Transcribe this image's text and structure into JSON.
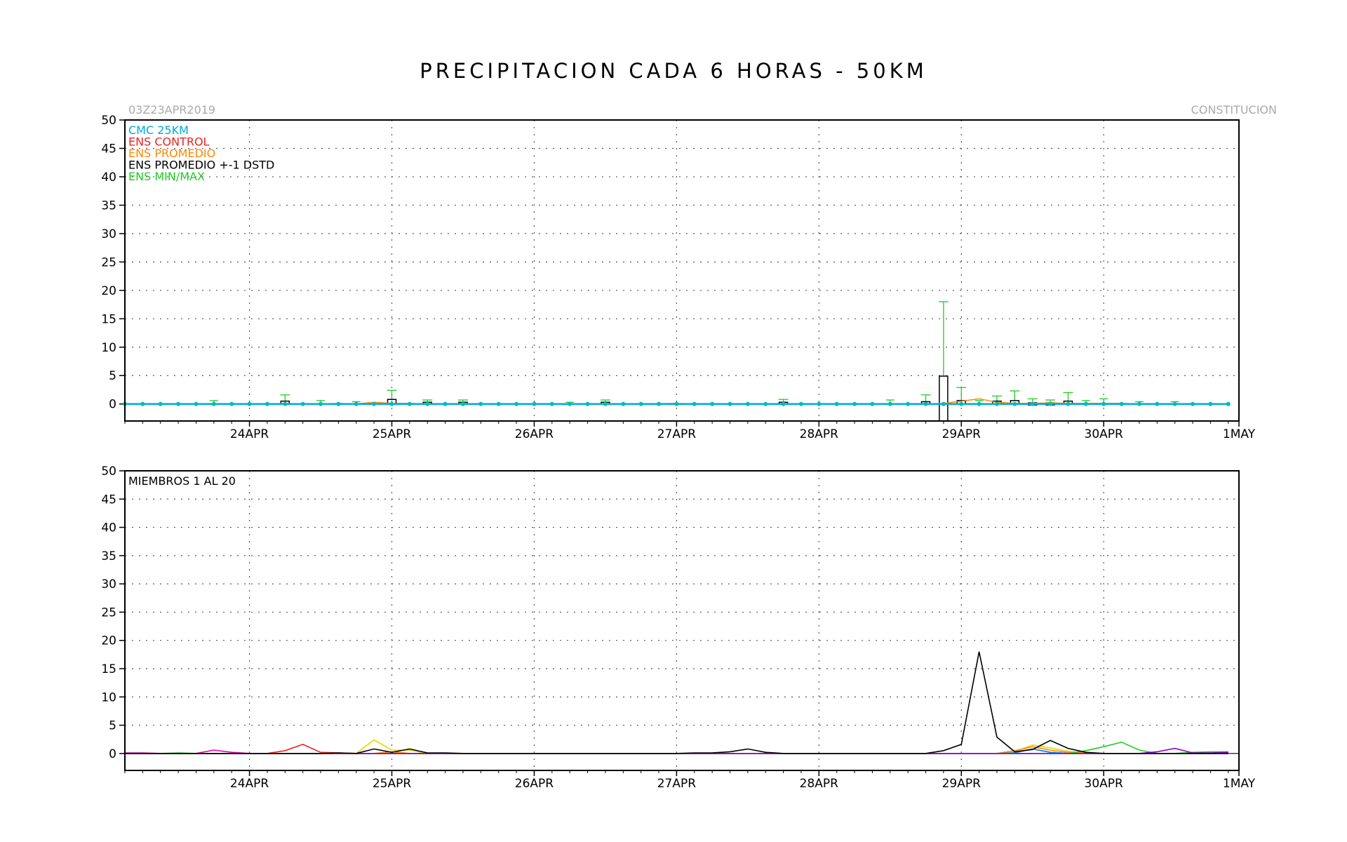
{
  "title": "PRECIPITACION CADA 6 HORAS - 50KM",
  "run_label": "03Z23APR2019",
  "location": "CONSTITUCION",
  "colors": {
    "cmc": "#00aadd",
    "control": "#ee2222",
    "promedio": "#ff8800",
    "stdbox": "#000000",
    "minmax": "#22cc22"
  },
  "chart_data": [
    {
      "type": "line",
      "name": "top-panel",
      "x_unit": "6-hour steps from 03Z23APR2019",
      "xlim": [
        0,
        31.3
      ],
      "ylim": [
        -3,
        50
      ],
      "yticks": [
        0,
        5,
        10,
        15,
        20,
        25,
        30,
        35,
        40,
        45,
        50
      ],
      "xtick_labels": [
        "24APR",
        "25APR",
        "26APR",
        "27APR",
        "28APR",
        "29APR",
        "30APR",
        "1MAY"
      ],
      "xtick_positions": [
        3.5,
        7.5,
        11.5,
        15.5,
        19.5,
        23.5,
        27.5,
        31.5
      ],
      "legend": [
        {
          "label": "CMC 25KM",
          "color": "#00aadd"
        },
        {
          "label": "ENS CONTROL",
          "color": "#ee2222"
        },
        {
          "label": "ENS PROMEDIO",
          "color": "#ff8800"
        },
        {
          "label": "ENS PROMEDIO +-1 DSTD",
          "color": "#000000"
        },
        {
          "label": "ENS MIN/MAX",
          "color": "#22cc22"
        }
      ],
      "cmc": [
        0,
        0,
        0,
        0,
        0,
        0,
        0,
        0,
        0,
        0,
        0,
        0,
        0,
        0,
        0,
        0,
        0,
        0,
        0,
        0,
        0,
        0,
        0,
        0,
        0,
        0,
        0,
        0,
        0,
        0,
        0,
        0,
        0,
        0,
        0,
        0,
        0,
        0,
        0,
        0,
        0,
        0,
        0,
        0,
        0,
        0,
        0,
        0,
        0,
        0,
        0,
        0,
        0,
        0,
        0,
        0,
        0,
        0,
        0,
        0,
        0,
        0,
        0
      ],
      "control": [
        0,
        0,
        0,
        0,
        0,
        0,
        0,
        0,
        0,
        0,
        0,
        0,
        0,
        0,
        0,
        0,
        0,
        0,
        0,
        0,
        0,
        0,
        0,
        0,
        0,
        0,
        0,
        0,
        0,
        0,
        0,
        0,
        0,
        0,
        0,
        0,
        0,
        0,
        0,
        0,
        0,
        0,
        0,
        0,
        0,
        0,
        0,
        0,
        0,
        0,
        0,
        0,
        0,
        0,
        0,
        0,
        0,
        0,
        0,
        0,
        0,
        0,
        0
      ],
      "promedio": [
        0,
        0,
        0,
        0,
        0,
        0,
        0,
        0,
        0,
        0.1,
        0,
        0,
        0.1,
        0,
        0.3,
        0.1,
        0.1,
        0,
        0,
        0,
        0,
        0,
        0,
        0,
        0,
        0,
        0,
        0,
        0.05,
        0.05,
        0.05,
        0.1,
        0,
        0,
        0,
        0,
        0,
        0,
        0,
        0,
        0,
        0,
        0,
        0,
        0,
        0,
        0.1,
        0.5,
        0.9,
        0.3,
        0.1,
        0.1,
        0.2,
        0.1,
        0.1,
        0.1,
        0.1,
        0,
        0,
        0,
        0,
        0,
        0
      ],
      "stats": [
        {
          "x": 4.5,
          "mean": 0.1,
          "sd_low": 0,
          "sd_high": 0.5,
          "max": 1.6
        },
        {
          "x": 7.5,
          "mean": 0.1,
          "sd_low": 0,
          "sd_high": 0.8,
          "max": 2.4
        },
        {
          "x": 8.5,
          "mean": 0.1,
          "sd_low": 0,
          "sd_high": 0.3,
          "max": 0.7
        },
        {
          "x": 9.5,
          "mean": 0.1,
          "sd_low": 0,
          "sd_high": 0.3,
          "max": 0.7
        },
        {
          "x": 13.5,
          "mean": 0.1,
          "sd_low": 0,
          "sd_high": 0.3,
          "max": 0.7
        },
        {
          "x": 18.5,
          "mean": 0.1,
          "sd_low": 0,
          "sd_high": 0.3,
          "max": 0.8
        },
        {
          "x": 22.5,
          "mean": 0.1,
          "sd_low": 0,
          "sd_high": 0.4,
          "max": 1.6
        },
        {
          "x": 23.0,
          "mean": 0.9,
          "sd_low": -3.0,
          "sd_high": 4.9,
          "max": 18.0
        },
        {
          "x": 23.5,
          "mean": 0.3,
          "sd_low": 0,
          "sd_high": 0.6,
          "max": 2.9
        },
        {
          "x": 24.5,
          "mean": 0.2,
          "sd_low": 0,
          "sd_high": 0.5,
          "max": 1.4
        },
        {
          "x": 25.0,
          "mean": 0.4,
          "sd_low": 0,
          "sd_high": 0.6,
          "max": 2.3
        },
        {
          "x": 25.5,
          "mean": 0.1,
          "sd_low": 0,
          "sd_high": 0.2,
          "max": 0.9
        },
        {
          "x": 26.0,
          "mean": 0.1,
          "sd_low": 0,
          "sd_high": 0.2,
          "max": 0.7
        },
        {
          "x": 26.5,
          "mean": 0.2,
          "sd_low": 0,
          "sd_high": 0.5,
          "max": 2.0
        }
      ],
      "minmax_small": [
        {
          "x": 2.5,
          "max": 0.6
        },
        {
          "x": 5.5,
          "max": 0.6
        },
        {
          "x": 6.5,
          "max": 0.4
        },
        {
          "x": 12.5,
          "max": 0.3
        },
        {
          "x": 21.5,
          "max": 0.7
        },
        {
          "x": 24.0,
          "max": 0.6
        },
        {
          "x": 27.0,
          "max": 0.6
        },
        {
          "x": 27.5,
          "max": 0.9
        },
        {
          "x": 28.5,
          "max": 0.4
        },
        {
          "x": 29.5,
          "max": 0.4
        }
      ]
    },
    {
      "type": "line",
      "name": "bottom-panel",
      "xlim": [
        0,
        31.3
      ],
      "ylim": [
        -3,
        50
      ],
      "yticks": [
        0,
        5,
        10,
        15,
        20,
        25,
        30,
        35,
        40,
        45,
        50
      ],
      "xtick_labels": [
        "24APR",
        "25APR",
        "26APR",
        "27APR",
        "28APR",
        "29APR",
        "30APR",
        "1MAY"
      ],
      "xtick_positions": [
        3.5,
        7.5,
        11.5,
        15.5,
        19.5,
        23.5,
        27.5,
        31.5
      ],
      "label": "MIEMBROS 1 AL 20",
      "series": [
        {
          "color": "#000000",
          "values": [
            0,
            0,
            0,
            0,
            0,
            0,
            0,
            0,
            0,
            0,
            0,
            0,
            0.1,
            0,
            0.8,
            0.2,
            0.8,
            0.1,
            0.1,
            0,
            0,
            0,
            0,
            0,
            0,
            0,
            0,
            0,
            0,
            0,
            0,
            0,
            0.1,
            0.1,
            0.3,
            0.8,
            0.2,
            0,
            0,
            0,
            0,
            0,
            0,
            0,
            0,
            0,
            0.5,
            1.6,
            18.0,
            2.9,
            0.3,
            0.7,
            2.3,
            0.9,
            0.2,
            0,
            0,
            0,
            0,
            0,
            0,
            0,
            0
          ]
        },
        {
          "color": "#ee2222",
          "values": [
            0,
            0,
            0,
            0,
            0,
            0,
            0,
            0,
            0,
            0.5,
            1.6,
            0.2,
            0.1,
            0,
            0,
            0,
            0,
            0,
            0,
            0,
            0,
            0,
            0,
            0,
            0,
            0,
            0,
            0,
            0,
            0,
            0,
            0,
            0,
            0,
            0,
            0,
            0,
            0,
            0,
            0,
            0,
            0,
            0,
            0,
            0,
            0,
            0,
            0,
            0,
            0,
            0.2,
            0.8,
            0.2,
            0,
            0,
            0,
            0,
            0,
            0,
            0,
            0,
            0,
            0
          ]
        },
        {
          "color": "#dd00aa",
          "values": [
            0.1,
            0.1,
            0,
            0,
            0,
            0.6,
            0.2,
            0,
            0,
            0,
            0,
            0,
            0,
            0,
            0,
            0,
            0,
            0,
            0,
            0,
            0,
            0,
            0,
            0,
            0,
            0,
            0,
            0,
            0,
            0,
            0,
            0,
            0,
            0,
            0,
            0,
            0,
            0,
            0,
            0,
            0,
            0,
            0,
            0,
            0,
            0,
            0,
            0,
            0,
            0,
            0,
            0,
            0,
            0,
            0,
            0,
            0,
            0,
            0,
            0,
            0,
            0,
            0
          ]
        },
        {
          "color": "#dddd00",
          "values": [
            0,
            0,
            0,
            0,
            0,
            0,
            0,
            0,
            0,
            0,
            0,
            0,
            0,
            0,
            2.4,
            0.6,
            0.6,
            0,
            0,
            0,
            0,
            0,
            0,
            0,
            0,
            0,
            0,
            0,
            0,
            0,
            0,
            0,
            0,
            0,
            0,
            0,
            0,
            0,
            0,
            0,
            0,
            0,
            0,
            0,
            0,
            0,
            0,
            0,
            0,
            0,
            0.3,
            1.5,
            1.0,
            0.4,
            0.1,
            0,
            0,
            0,
            0,
            0,
            0,
            0,
            0
          ]
        },
        {
          "color": "#ff8800",
          "values": [
            0,
            0,
            0,
            0,
            0,
            0,
            0,
            0,
            0,
            0,
            0,
            0,
            0.1,
            0,
            0,
            0.3,
            0,
            0,
            0,
            0,
            0,
            0,
            0,
            0,
            0,
            0,
            0,
            0,
            0,
            0,
            0,
            0,
            0,
            0,
            0,
            0,
            0,
            0,
            0,
            0,
            0,
            0,
            0,
            0,
            0,
            0,
            0,
            0,
            0,
            0,
            0.5,
            1.2,
            0.6,
            0.2,
            0.1,
            0,
            0,
            0,
            0,
            0,
            0,
            0,
            0
          ]
        },
        {
          "color": "#0088ff",
          "values": [
            0,
            0,
            0,
            0,
            0,
            0,
            0,
            0,
            0,
            0,
            0,
            0,
            0,
            0,
            0,
            0,
            0,
            0,
            0,
            0,
            0,
            0,
            0,
            0,
            0,
            0,
            0,
            0,
            0,
            0,
            0,
            0,
            0,
            0,
            0,
            0,
            0,
            0,
            0,
            0,
            0,
            0,
            0,
            0,
            0,
            0,
            0,
            0,
            0,
            0,
            0.1,
            0.8,
            0.2,
            0,
            0,
            0,
            0,
            0,
            0,
            0,
            0,
            0,
            0
          ]
        },
        {
          "color": "#22cc22",
          "values": [
            0,
            0,
            0,
            0.1,
            0,
            0,
            0,
            0,
            0,
            0,
            0,
            0,
            0,
            0,
            0,
            0,
            0,
            0,
            0,
            0,
            0,
            0,
            0,
            0,
            0,
            0,
            0,
            0,
            0,
            0,
            0,
            0,
            0,
            0,
            0,
            0,
            0,
            0,
            0,
            0,
            0,
            0,
            0,
            0,
            0,
            0,
            0,
            0,
            0,
            0,
            0,
            0,
            0,
            0,
            0.5,
            1.2,
            2.0,
            0.6,
            0,
            0,
            0.2,
            0.3,
            0.3
          ]
        },
        {
          "color": "#8800cc",
          "values": [
            0,
            0,
            0,
            0,
            0,
            0,
            0,
            0,
            0,
            0,
            0,
            0,
            0,
            0,
            0,
            0,
            0,
            0,
            0,
            0,
            0,
            0,
            0,
            0,
            0,
            0,
            0,
            0,
            0,
            0,
            0,
            0,
            0,
            0,
            0,
            0,
            0,
            0,
            0,
            0,
            0,
            0,
            0,
            0,
            0,
            0,
            0,
            0,
            0,
            0,
            0,
            0,
            0,
            0,
            0,
            0,
            0,
            0,
            0.3,
            0.9,
            0.1,
            0.1,
            0.2
          ]
        }
      ]
    }
  ]
}
